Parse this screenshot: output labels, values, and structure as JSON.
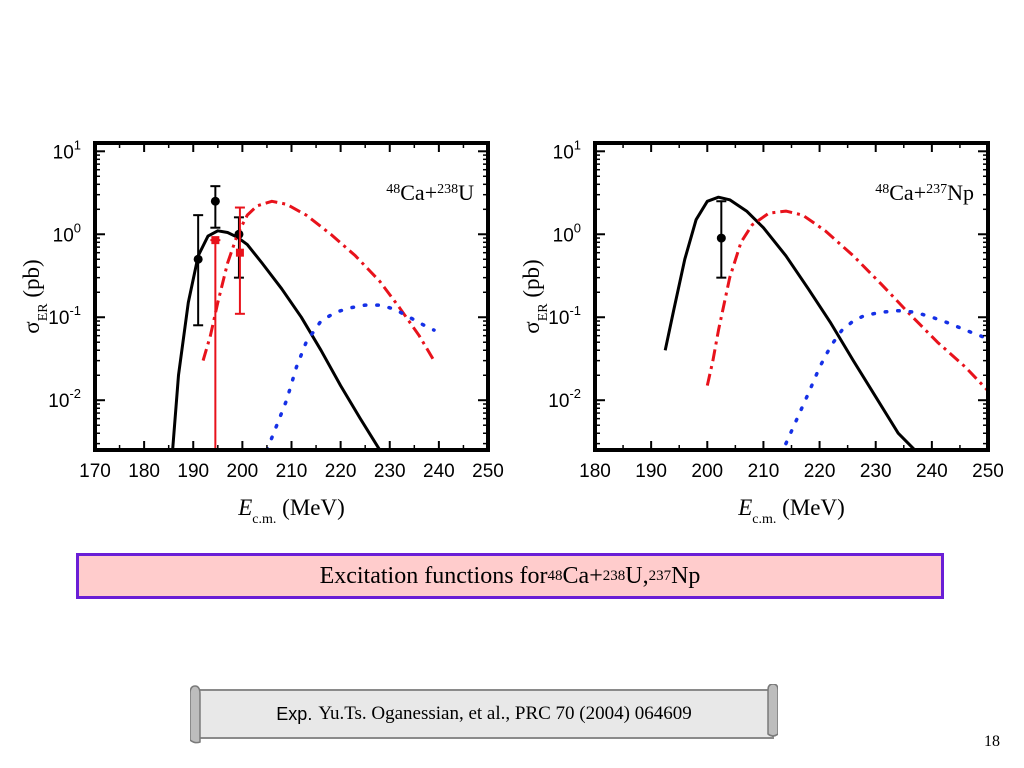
{
  "chart_data": [
    {
      "type": "line",
      "reaction": {
        "a1": "48",
        "el1": "Ca+",
        "a2": "238",
        "el2": "U"
      },
      "xlabel": {
        "var": "E",
        "sub": "c.m.",
        "unit": " (MeV)"
      },
      "ylabel": {
        "var": "σ",
        "sub": "ER",
        "unit": " (pb)"
      },
      "xlim": [
        170,
        250
      ],
      "xticks": [
        170,
        180,
        190,
        200,
        210,
        220,
        230,
        240,
        250
      ],
      "ylim_log10": [
        -2.6,
        1.1
      ],
      "yticks_log10": [
        1,
        0,
        -1,
        -2
      ],
      "ytick_labels": [
        {
          "b": "10",
          "e": "1"
        },
        {
          "b": "10",
          "e": "0"
        },
        {
          "b": "10",
          "e": "-1"
        },
        {
          "b": "10",
          "e": "-2"
        }
      ],
      "series": [
        {
          "style": "solid",
          "color": "#000000",
          "x": [
            185.8,
            187,
            189,
            191,
            193,
            195,
            197,
            199,
            201,
            204,
            208,
            212,
            216,
            220,
            224,
            228
          ],
          "y": [
            0.0025,
            0.02,
            0.15,
            0.55,
            0.95,
            1.1,
            1.05,
            0.92,
            0.75,
            0.45,
            0.22,
            0.1,
            0.04,
            0.015,
            0.006,
            0.0025
          ]
        },
        {
          "style": "dashdot",
          "color": "#e8121b",
          "x": [
            192,
            193.5,
            195,
            197,
            199,
            201,
            203,
            206,
            209,
            213,
            218,
            223,
            228,
            232,
            236,
            239
          ],
          "y": [
            0.03,
            0.06,
            0.15,
            0.45,
            1.0,
            1.7,
            2.2,
            2.5,
            2.3,
            1.7,
            1.0,
            0.55,
            0.27,
            0.13,
            0.06,
            0.03
          ]
        },
        {
          "style": "dotted",
          "color": "#1530e6",
          "x": [
            205,
            207,
            209,
            211,
            213,
            216,
            219,
            222,
            225,
            228,
            231,
            234,
            237,
            239
          ],
          "y": [
            0.0025,
            0.005,
            0.01,
            0.025,
            0.05,
            0.09,
            0.115,
            0.13,
            0.14,
            0.14,
            0.125,
            0.1,
            0.08,
            0.07
          ]
        }
      ],
      "points": [
        {
          "color": "#000000",
          "marker": "circle",
          "x": 191,
          "y": 0.5,
          "ylo": 0.08,
          "yhi": 1.7
        },
        {
          "color": "#000000",
          "marker": "circle",
          "x": 194.5,
          "y": 2.5,
          "ylo": 1.2,
          "yhi": 3.8
        },
        {
          "color": "#000000",
          "marker": "circle",
          "x": 199.3,
          "y": 1.0,
          "ylo": 0.3,
          "yhi": 1.6
        },
        {
          "color": "#e8121b",
          "marker": "square",
          "x": 194.5,
          "y": 0.85,
          "ylo": 0.0025,
          "yhi": 0.85
        },
        {
          "color": "#e8121b",
          "marker": "square",
          "x": 199.5,
          "y": 0.6,
          "ylo": 0.11,
          "yhi": 2.1
        }
      ]
    },
    {
      "type": "line",
      "reaction": {
        "a1": "48",
        "el1": "Ca+",
        "a2": "237",
        "el2": "Np"
      },
      "xlabel": {
        "var": "E",
        "sub": "c.m.",
        "unit": " (MeV)"
      },
      "ylabel": {
        "var": "σ",
        "sub": "ER",
        "unit": " (pb)"
      },
      "xlim": [
        180,
        250
      ],
      "xticks": [
        180,
        190,
        200,
        210,
        220,
        230,
        240,
        250
      ],
      "ylim_log10": [
        -2.6,
        1.1
      ],
      "yticks_log10": [
        1,
        0,
        -1,
        -2
      ],
      "ytick_labels": [
        {
          "b": "10",
          "e": "1"
        },
        {
          "b": "10",
          "e": "0"
        },
        {
          "b": "10",
          "e": "-1"
        },
        {
          "b": "10",
          "e": "-2"
        }
      ],
      "series": [
        {
          "style": "solid",
          "color": "#000000",
          "x": [
            192.5,
            194,
            196,
            198,
            200,
            202,
            204,
            207,
            210,
            214,
            218,
            222,
            226,
            230,
            234,
            237
          ],
          "y": [
            0.04,
            0.12,
            0.5,
            1.5,
            2.5,
            2.8,
            2.6,
            1.9,
            1.2,
            0.55,
            0.22,
            0.085,
            0.03,
            0.011,
            0.004,
            0.0025
          ]
        },
        {
          "style": "dashdot",
          "color": "#e8121b",
          "x": [
            200,
            201,
            202,
            204,
            206,
            208,
            211,
            214,
            217,
            221,
            226,
            231,
            236,
            241,
            246,
            250
          ],
          "y": [
            0.015,
            0.03,
            0.07,
            0.3,
            0.8,
            1.3,
            1.8,
            1.9,
            1.7,
            1.1,
            0.55,
            0.25,
            0.11,
            0.05,
            0.025,
            0.013
          ]
        },
        {
          "style": "dotted",
          "color": "#1530e6",
          "x": [
            214,
            216,
            218,
            220,
            222,
            224,
            226,
            228,
            231,
            234,
            237,
            240,
            243,
            246,
            250
          ],
          "y": [
            0.003,
            0.006,
            0.012,
            0.025,
            0.045,
            0.07,
            0.09,
            0.105,
            0.115,
            0.12,
            0.115,
            0.1,
            0.085,
            0.07,
            0.055
          ]
        }
      ],
      "points": [
        {
          "color": "#000000",
          "marker": "circle",
          "x": 202.5,
          "y": 0.9,
          "ylo": 0.3,
          "yhi": 2.5
        }
      ]
    }
  ],
  "caption": {
    "prefix": "Excitation functions for ",
    "a1": "48",
    "t1": "Ca+",
    "a2": "238",
    "t2": "U, ",
    "a3": "237",
    "t3": "Np"
  },
  "reference": {
    "label": "Exp.",
    "text": "Yu.Ts. Oganessian, et al.,  PRC 70 (2004) 064609"
  },
  "page_number": "18"
}
